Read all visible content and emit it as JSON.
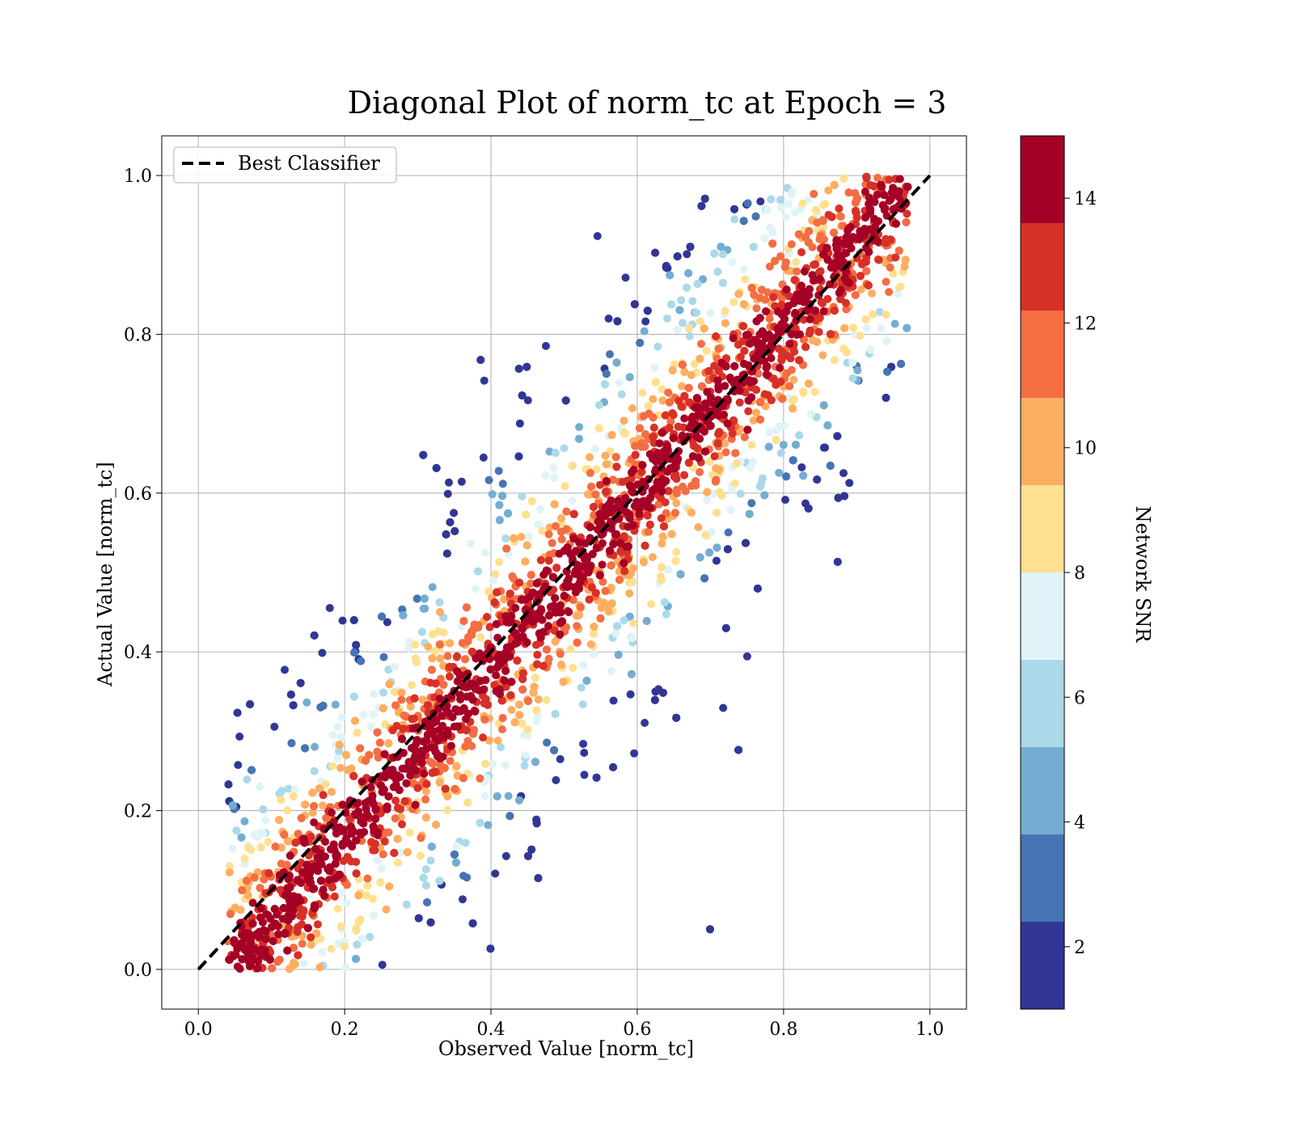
{
  "chart_data": {
    "type": "scatter",
    "title": "Diagonal Plot of norm_tc at Epoch = 3",
    "xlabel": "Observed Value [norm_tc]",
    "ylabel": "Actual Value [norm_tc]",
    "xlim": [
      -0.05,
      1.05
    ],
    "ylim": [
      -0.05,
      1.05
    ],
    "xticks": [
      0.0,
      0.2,
      0.4,
      0.6,
      0.8,
      1.0
    ],
    "yticks": [
      0.0,
      0.2,
      0.4,
      0.6,
      0.8,
      1.0
    ],
    "xtick_labels": [
      "0.0",
      "0.2",
      "0.4",
      "0.6",
      "0.8",
      "1.0"
    ],
    "ytick_labels": [
      "0.0",
      "0.2",
      "0.4",
      "0.6",
      "0.8",
      "1.0"
    ],
    "grid": true,
    "legend": {
      "placement": "top-left",
      "entries": [
        {
          "label": "Best Classifier",
          "style": "dashed",
          "color": "#000000"
        }
      ]
    },
    "reference_line": {
      "x": [
        0.0,
        1.0
      ],
      "y": [
        0.0,
        1.0
      ]
    },
    "colorbar": {
      "label": "Network SNR",
      "range": [
        1,
        15
      ],
      "ticks": [
        2,
        4,
        6,
        8,
        10,
        12,
        14
      ],
      "tick_labels": [
        "2",
        "4",
        "6",
        "8",
        "10",
        "12",
        "14"
      ],
      "bins": [
        {
          "from": 1,
          "to": 2.4,
          "color": "#313695"
        },
        {
          "from": 2.4,
          "to": 3.8,
          "color": "#4575b4"
        },
        {
          "from": 3.8,
          "to": 5.2,
          "color": "#74add1"
        },
        {
          "from": 5.2,
          "to": 6.6,
          "color": "#abd9e9"
        },
        {
          "from": 6.6,
          "to": 8.0,
          "color": "#e0f3f8"
        },
        {
          "from": 8.0,
          "to": 9.4,
          "color": "#fee090"
        },
        {
          "from": 9.4,
          "to": 10.8,
          "color": "#fdae61"
        },
        {
          "from": 10.8,
          "to": 12.2,
          "color": "#f46d43"
        },
        {
          "from": 12.2,
          "to": 13.6,
          "color": "#d73027"
        },
        {
          "from": 13.6,
          "to": 15,
          "color": "#a50026"
        }
      ]
    },
    "scatter_distribution": {
      "description_of_points": "dense band along diagonal; high SNR near diagonal, low SNR far from diagonal",
      "x_range": [
        0.04,
        0.97
      ],
      "y_range": [
        0.0,
        1.0
      ]
    }
  }
}
